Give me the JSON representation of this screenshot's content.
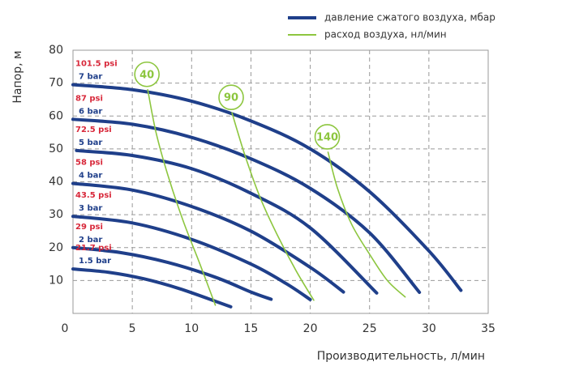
{
  "chart_data": {
    "type": "line",
    "xlabel": "Производительность, л/мин",
    "ylabel": "Напор, м",
    "xlim": [
      0,
      35
    ],
    "xticks": [
      0,
      5,
      10,
      15,
      20,
      25,
      30,
      35
    ],
    "ylim": [
      0,
      80
    ],
    "yticks": [
      10,
      20,
      30,
      40,
      50,
      60,
      70,
      80
    ],
    "grid": true,
    "legend": [
      {
        "label": "давление сжатого воздуха, мбар",
        "color": "#1f3f8a"
      },
      {
        "label": "расход воздуха, нл/мин",
        "color": "#8dc63f"
      }
    ],
    "pressure_curves": {
      "color": "#1f3f8a",
      "psi_color": "#d8283a",
      "series": [
        {
          "name": "7 bar",
          "psi": "101.5 psi",
          "x": [
            0,
            5,
            10,
            15,
            20,
            25,
            30,
            32.7
          ],
          "values": [
            69.5,
            68,
            64.5,
            58.5,
            50,
            37,
            19,
            7
          ]
        },
        {
          "name": "6 bar",
          "psi": "87 psi",
          "x": [
            0,
            5,
            10,
            15,
            20,
            25,
            29.2
          ],
          "values": [
            59,
            57.5,
            53.5,
            47,
            38,
            24.5,
            6.4
          ]
        },
        {
          "name": "5 bar",
          "psi": "72.5 psi",
          "x": [
            0.3,
            5,
            10,
            15,
            20,
            25.6
          ],
          "values": [
            49.5,
            48,
            44,
            36.5,
            26,
            6.2
          ]
        },
        {
          "name": "4 bar",
          "psi": "58 psi",
          "x": [
            0,
            5,
            10,
            15,
            20,
            22.8
          ],
          "values": [
            39.5,
            37.5,
            32.5,
            25,
            14,
            6.5
          ]
        },
        {
          "name": "3 bar",
          "psi": "43.5 psi",
          "x": [
            0,
            5,
            10,
            15,
            18,
            20
          ],
          "values": [
            29.5,
            27.5,
            22.5,
            15,
            9,
            4.2
          ]
        },
        {
          "name": "2 bar",
          "psi": "29 psi",
          "x": [
            0,
            4,
            8,
            12,
            15,
            16.7
          ],
          "values": [
            20,
            18.5,
            15.5,
            11,
            6.5,
            4.3
          ]
        },
        {
          "name": "1.5 bar",
          "psi": "21.7 psi",
          "x": [
            0,
            3,
            6,
            9,
            12,
            13.3
          ],
          "values": [
            13.5,
            12.5,
            10.5,
            7.5,
            3.7,
            2
          ]
        }
      ]
    },
    "flow_curves": {
      "color": "#8dc63f",
      "series": [
        {
          "name": "40",
          "x": [
            6.3,
            7,
            8,
            9.3,
            10.7,
            12
          ],
          "values": [
            68,
            55,
            42,
            28,
            15,
            2.5
          ]
        },
        {
          "name": "90",
          "x": [
            13.4,
            14.5,
            15.8,
            17.2,
            18.8,
            20.3
          ],
          "values": [
            61,
            48,
            35,
            24,
            13,
            4
          ]
        },
        {
          "name": "140",
          "x": [
            21.5,
            22.3,
            23.5,
            25,
            26.5,
            28
          ],
          "values": [
            49,
            38,
            27,
            18,
            10,
            5
          ]
        }
      ]
    }
  }
}
